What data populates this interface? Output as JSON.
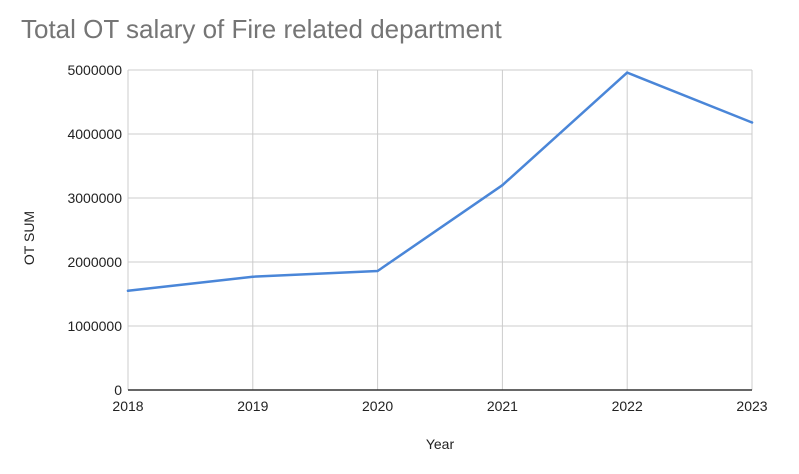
{
  "chart_data": {
    "type": "line",
    "title": "Total OT salary of Fire related department",
    "xlabel": "Year",
    "ylabel": "OT SUM",
    "x": [
      "2018",
      "2019",
      "2020",
      "2021",
      "2022",
      "2023"
    ],
    "series": [
      {
        "values": [
          1550000,
          1770000,
          1860000,
          3200000,
          4960000,
          4180000
        ]
      }
    ],
    "ylim": [
      0,
      5000000
    ],
    "yticks": [
      "0",
      "1000000",
      "2000000",
      "3000000",
      "4000000",
      "5000000"
    ],
    "grid": true,
    "legend": "none",
    "line_color": "#4a86d8",
    "grid_color": "#cccccc",
    "axis_color": "#333333",
    "title_color": "#757575"
  }
}
